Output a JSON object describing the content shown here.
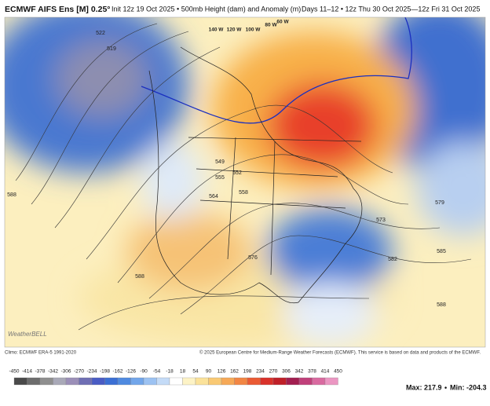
{
  "header": {
    "model": "ECMWF AIFS Ens [M] 0.25°",
    "init": "Init 12z 19 Oct 2025 • 500mb Height (dam) and Anomaly (m)",
    "valid": "Days 11–12 • 12z Thu 30 Oct 2025—12z Fri 31 Oct 2025"
  },
  "map": {
    "contour_labels": [
      522,
      519,
      549,
      552,
      555,
      558,
      564,
      573,
      576,
      579,
      582,
      585,
      588,
      588,
      588
    ],
    "longitude_labels": [
      "140 W",
      "120 W",
      "100 W",
      "80 W",
      "60 W"
    ],
    "watermark": "WeatherBELL"
  },
  "footer": {
    "climo": "Climo: ECMWF ERA-5 1991-2020",
    "copyright": "© 2025 European Centre for Medium-Range Weather Forecasts (ECMWF). This service is based on data and products of the ECMWF."
  },
  "colorbar": {
    "labels": [
      -450,
      -414,
      -378,
      -342,
      -306,
      -270,
      -234,
      -198,
      -162,
      -126,
      -90,
      -54,
      -18,
      18,
      54,
      90,
      126,
      162,
      198,
      234,
      270,
      306,
      342,
      378,
      414,
      450
    ]
  },
  "stats": {
    "max_label": "Max:",
    "max": 217.9,
    "separator": "•",
    "min_label": "Min:",
    "min": -204.3
  }
}
